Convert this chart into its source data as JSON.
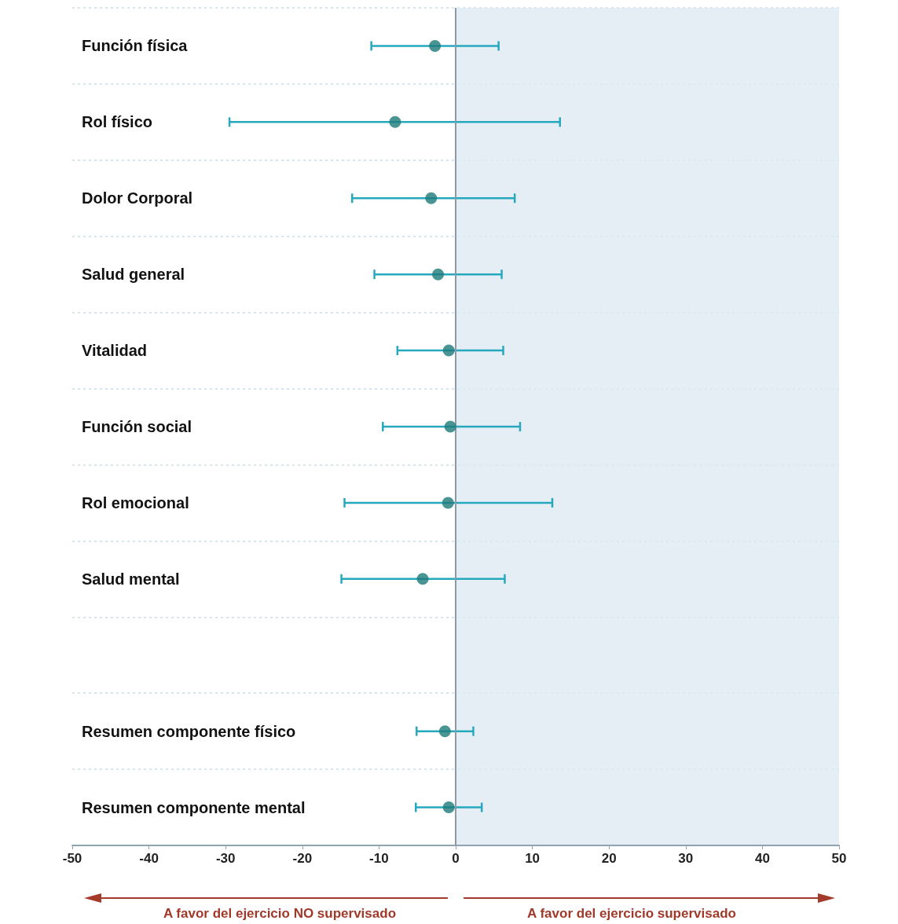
{
  "chart_data": {
    "type": "scatter",
    "orientation": "horizontal",
    "categories": [
      "Función física",
      "Rol físico",
      "Dolor Corporal",
      "Salud general",
      "Vitalidad",
      "Función social",
      "Rol emocional",
      "Salud mental",
      null,
      "Resumen componente físico",
      "Resumen componente mental"
    ],
    "series": [
      {
        "color": "#1d7b79",
        "values": [
          -2.7,
          -7.9,
          -3.2,
          -2.3,
          -0.9,
          -0.7,
          -1.0,
          -4.3,
          null,
          -1.4,
          -0.9
        ],
        "errors": [
          [
            -11.0,
            5.6
          ],
          [
            -29.5,
            13.6
          ],
          [
            -13.5,
            7.7
          ],
          [
            -10.6,
            6.0
          ],
          [
            -7.6,
            6.2
          ],
          [
            -9.5,
            8.4
          ],
          [
            -14.5,
            12.6
          ],
          [
            -14.9,
            6.4
          ],
          null,
          [
            -5.1,
            2.3
          ],
          [
            -5.2,
            3.4
          ]
        ]
      }
    ],
    "xlim": [
      -50,
      50
    ],
    "xticks": [
      -50,
      -40,
      -30,
      -20,
      -10,
      0,
      10,
      20,
      30,
      40,
      50
    ],
    "marker": "circle",
    "grid": "y",
    "ref_lines": [
      {
        "axis": "x",
        "value": 0,
        "color": "#8a9aa6"
      }
    ],
    "bands": [
      {
        "axis": "x",
        "from": 0,
        "to": 50,
        "color": "#dfeaf2"
      }
    ],
    "annotations": [
      "A favor del ejercicio NO supervisado",
      "A favor del ejercicio supervisado"
    ]
  }
}
